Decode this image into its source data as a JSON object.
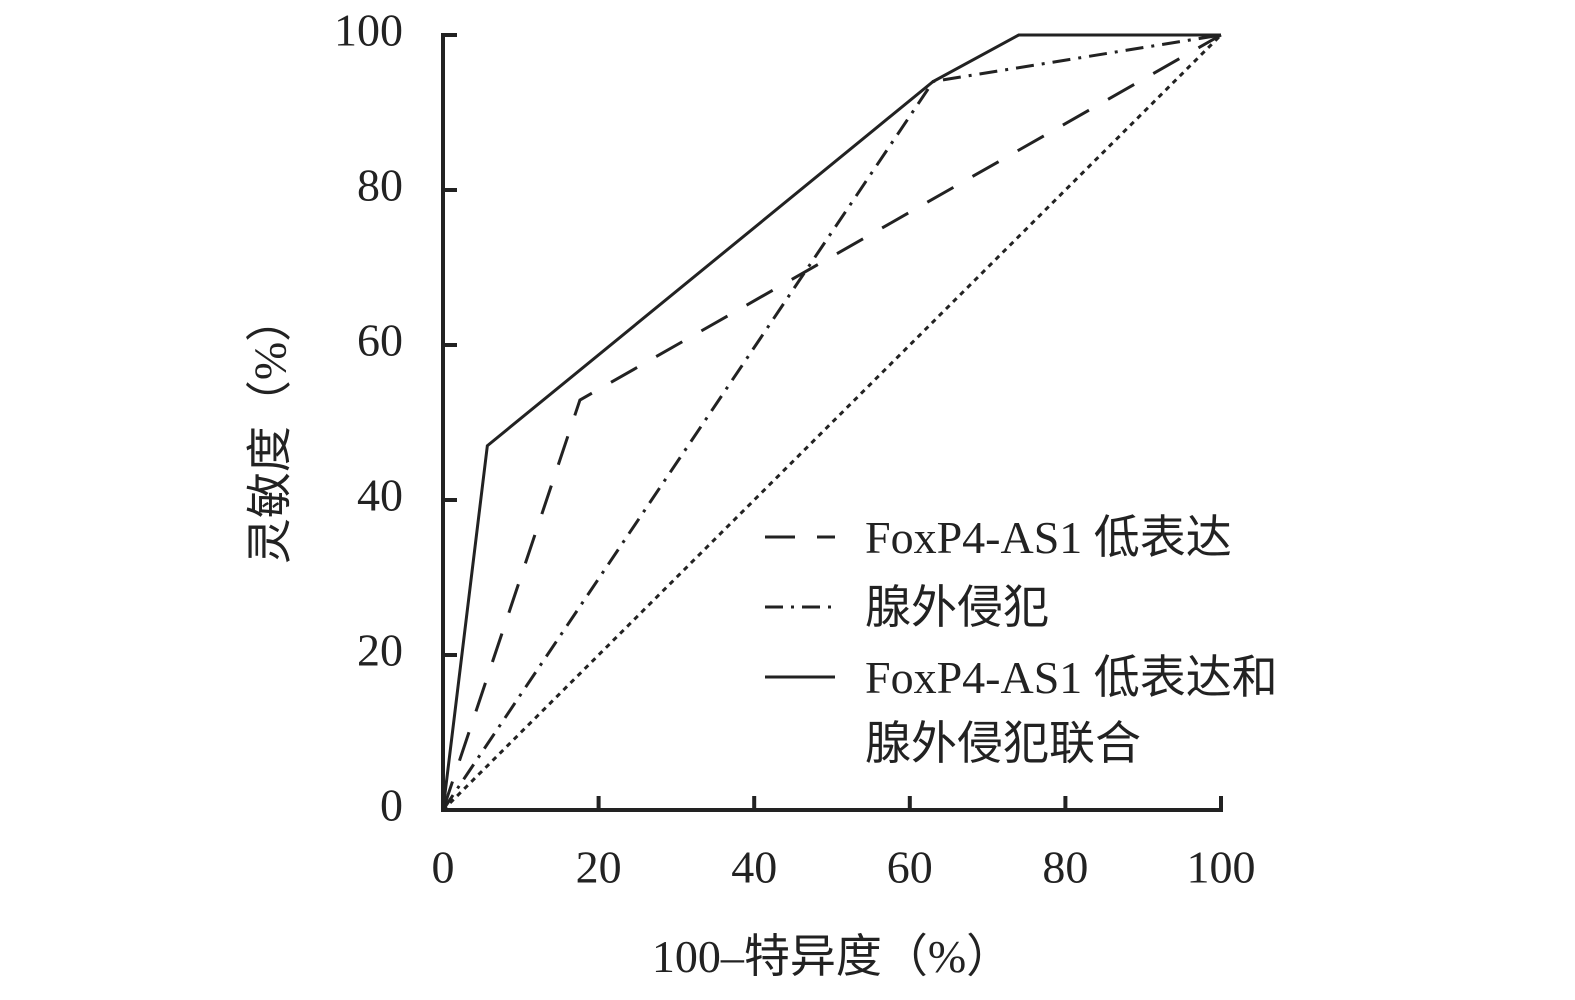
{
  "chart_data": {
    "type": "line",
    "xlabel": "100–特异度（%）",
    "ylabel": "灵敏度（%）",
    "xlim": [
      0,
      100
    ],
    "ylim": [
      0,
      100
    ],
    "xticks": [
      0,
      20,
      40,
      60,
      80,
      100
    ],
    "yticks": [
      0,
      20,
      40,
      60,
      80,
      100
    ],
    "series": [
      {
        "name": "FoxP4-AS1 低表达",
        "color": "#222222",
        "dash": "30 22",
        "x": [
          0,
          17.6,
          100
        ],
        "values": [
          0,
          52.9,
          100
        ]
      },
      {
        "name": "腺外侵犯",
        "color": "#222222",
        "dash": "18 8 3 8",
        "x": [
          0,
          63,
          100
        ],
        "values": [
          0,
          94,
          100
        ]
      },
      {
        "name": "FoxP4-AS1 低表达和\n腺外侵犯联合",
        "color": "#222222",
        "dash": "none",
        "x": [
          0,
          5.7,
          63,
          74,
          100
        ],
        "values": [
          0,
          47,
          94,
          100,
          100
        ]
      },
      {
        "color": "#222222",
        "dash": "5 5",
        "x": [
          0,
          100
        ],
        "values": [
          0,
          100
        ]
      }
    ]
  }
}
